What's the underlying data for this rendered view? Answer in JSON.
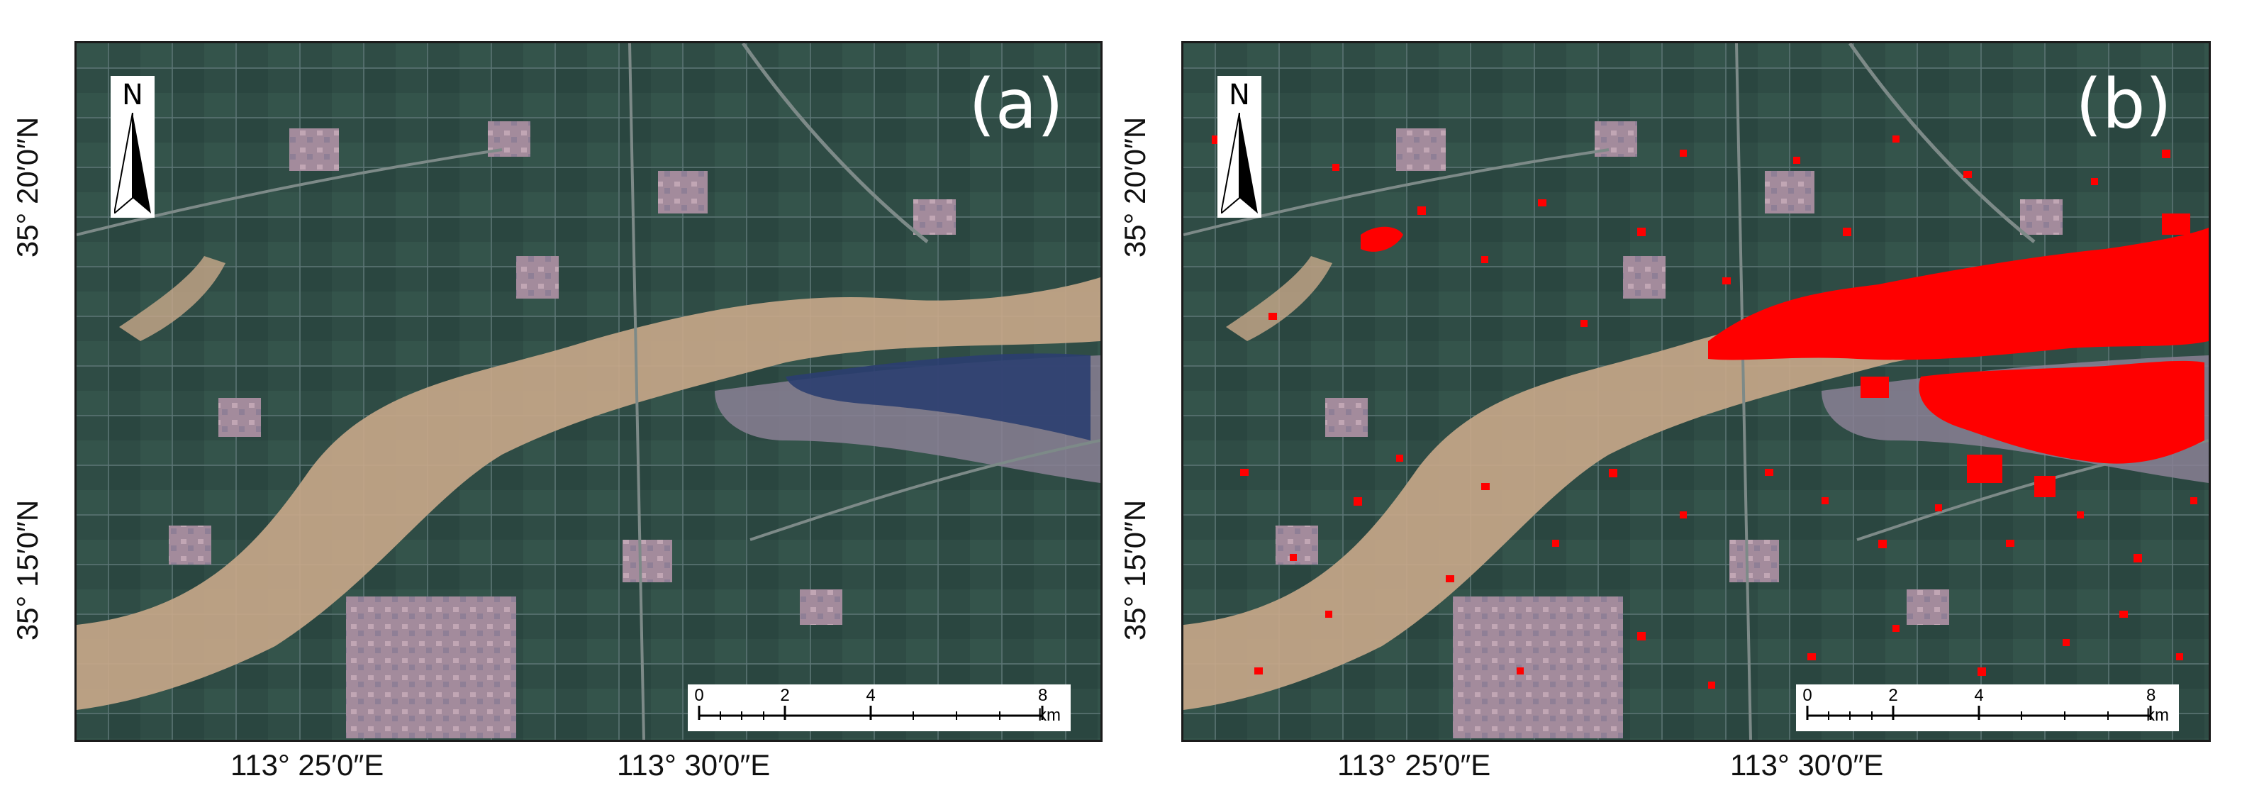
{
  "panels": [
    {
      "label": "(a)"
    },
    {
      "label": "(b)"
    }
  ],
  "north_arrow": {
    "letter": "N",
    "icon": "north-arrow-icon"
  },
  "scale_bar": {
    "ticks": [
      "0",
      "2",
      "4",
      "8 km"
    ]
  },
  "latitude_labels": [
    "35° 20′0″N",
    "35° 15′0″N"
  ],
  "longitude_labels": [
    "113° 25′0″E",
    "113° 30′0″E"
  ],
  "colors": {
    "vegetation": "#2f4c45",
    "river_sand": "#c9a98a",
    "settlement": "#a48c9c",
    "water": "#2b3e70",
    "detected_flood": "#ff0000"
  }
}
